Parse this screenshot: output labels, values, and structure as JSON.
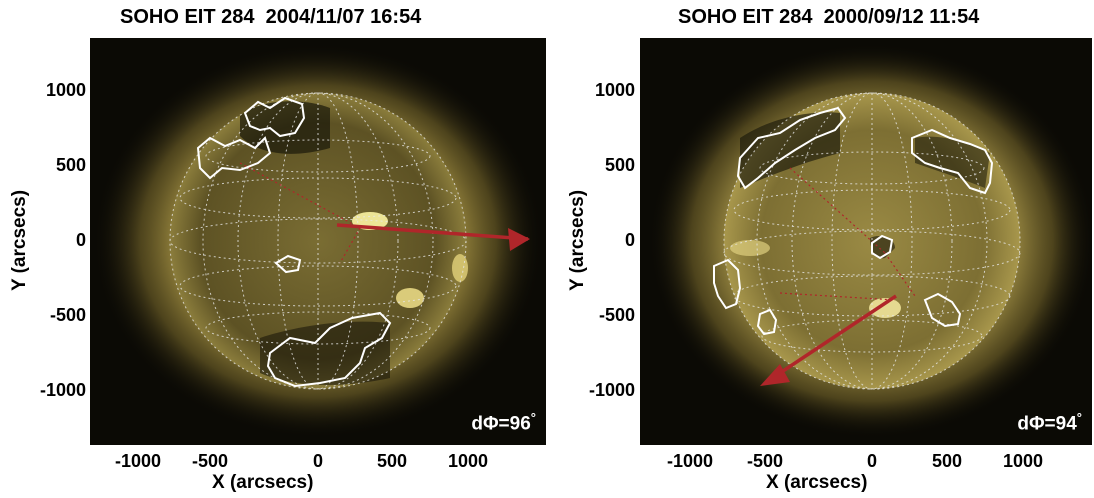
{
  "panels": [
    {
      "title": "SOHO EIT 284  2004/11/07 16:54",
      "xlabel": "X (arcsecs)",
      "ylabel": "Y (arcsecs)",
      "yticks": [
        "1000",
        "500",
        "0",
        "-500",
        "-1000"
      ],
      "xticks": [
        "-1000",
        "-500",
        "0",
        "500",
        "1000"
      ],
      "dphi_label": "dΦ=96",
      "dphi_degree": "°"
    },
    {
      "title": "SOHO EIT 284  2000/09/12 11:54",
      "xlabel": "X (arcsecs)",
      "ylabel": "Y (arcsecs)",
      "yticks": [
        "1000",
        "500",
        "0",
        "-500",
        "-1000"
      ],
      "xticks": [
        "-1000",
        "-500",
        "0",
        "500",
        "1000"
      ],
      "dphi_label": "dΦ=94",
      "dphi_degree": "°"
    }
  ],
  "colors": {
    "corona": "#c9b55a",
    "disk": "#6b5f2a",
    "contour": "#ffffff",
    "arrow": "#b0262a",
    "grid": "#e8e8e8"
  }
}
